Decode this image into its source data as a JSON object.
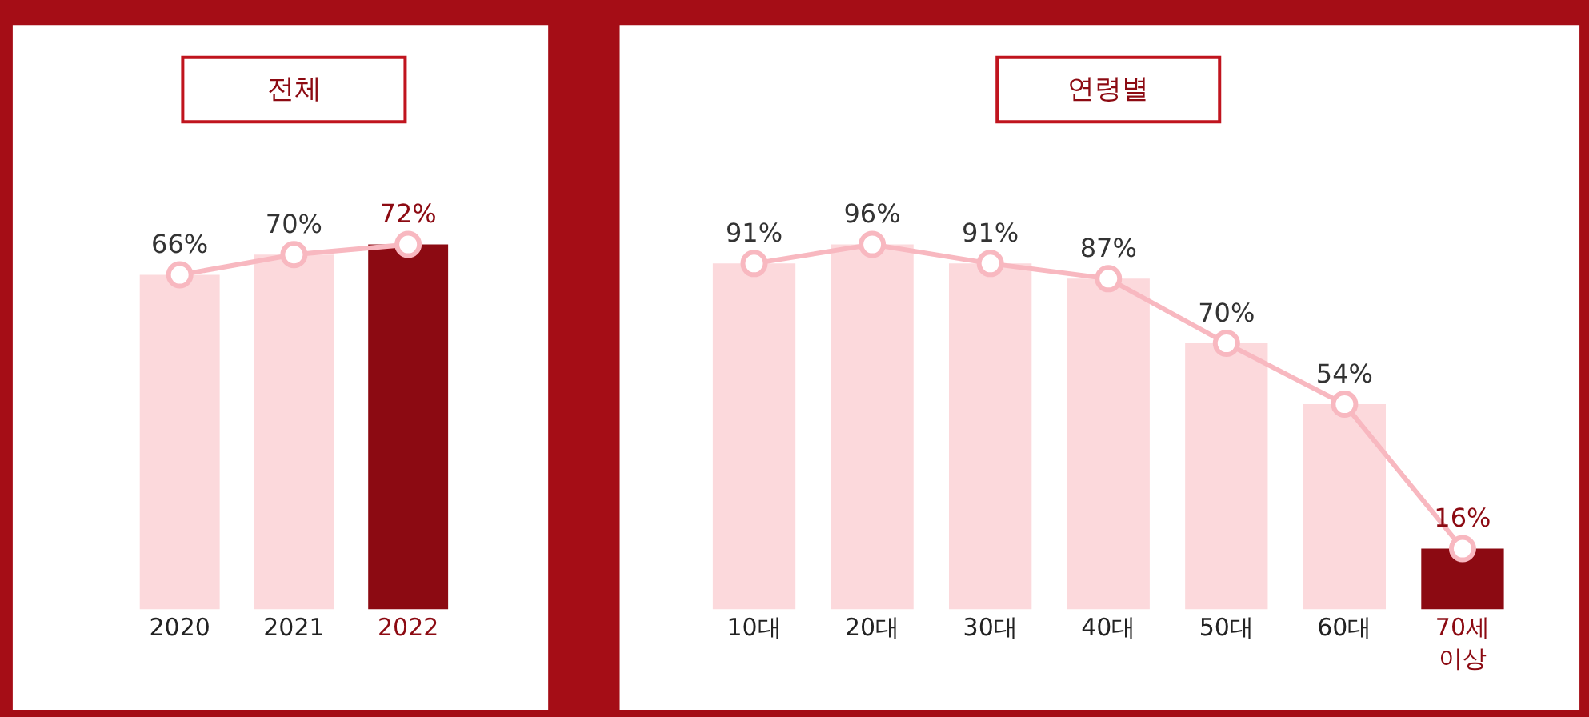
{
  "chart_data": [
    {
      "type": "bar",
      "title": "전체",
      "categories": [
        "2020",
        "2021",
        "2022"
      ],
      "marker": "circle",
      "series": [
        {
          "colors": [
            "#fcd9dc",
            "#fcd9dc",
            "#8c0a12"
          ],
          "values": [
            66,
            70,
            72
          ]
        },
        {
          "type": "line",
          "color": "#f8b8c0",
          "values": [
            66,
            70,
            72
          ],
          "value_labels": [
            "66%",
            "70%",
            "72%"
          ]
        }
      ]
    },
    {
      "type": "bar",
      "title": "연령별",
      "categories": [
        "10대",
        "20대",
        "30대",
        "40대",
        "50대",
        "60대",
        "70세 이상"
      ],
      "marker": "circle",
      "series": [
        {
          "colors": [
            "#fcd9dc",
            "#fcd9dc",
            "#fcd9dc",
            "#fcd9dc",
            "#fcd9dc",
            "#fcd9dc",
            "#8c0a12"
          ],
          "values": [
            91,
            96,
            91,
            87,
            70,
            54,
            16
          ]
        },
        {
          "type": "line",
          "color": "#f8b8c0",
          "values": [
            91,
            96,
            91,
            87,
            70,
            54,
            16
          ],
          "value_labels": [
            "91%",
            "96%",
            "91%",
            "87%",
            "70%",
            "54%",
            "16%"
          ]
        }
      ]
    }
  ]
}
